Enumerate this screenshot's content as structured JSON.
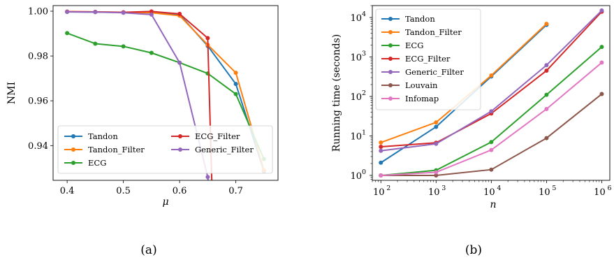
{
  "colors": {
    "Tandon": "#1f77b4",
    "Tandon_Filter": "#ff7f0e",
    "ECG": "#2ca02c",
    "ECG_Filter": "#d62728",
    "Generic_Filter": "#9467bd",
    "Louvain": "#8c564b",
    "Infomap": "#e377c2"
  },
  "chart_data": [
    {
      "type": "line",
      "caption": "(a)",
      "xlabel": "μ",
      "ylabel": "NMI",
      "xlim": [
        0.375,
        0.775
      ],
      "ylim": [
        0.9245,
        1.0025
      ],
      "xticks": [
        0.4,
        0.5,
        0.6,
        0.7
      ],
      "xtick_labels": [
        "0.4",
        "0.5",
        "0.6",
        "0.7"
      ],
      "yticks": [
        0.94,
        0.96,
        0.98,
        1.0
      ],
      "ytick_labels": [
        "0.94",
        "0.96",
        "0.98",
        "1.00"
      ],
      "legend": {
        "placement": "bottom",
        "columns": 2
      },
      "series": [
        {
          "name": "Tandon",
          "x": [
            0.4,
            0.45,
            0.5,
            0.55,
            0.6,
            0.65,
            0.7,
            0.75
          ],
          "y": [
            0.9997,
            0.9996,
            0.9994,
            0.9993,
            0.9985,
            0.9845,
            0.9675,
            0.9285
          ]
        },
        {
          "name": "Tandon_Filter",
          "x": [
            0.4,
            0.45,
            0.5,
            0.55,
            0.6,
            0.65,
            0.7,
            0.75
          ],
          "y": [
            0.9998,
            0.9997,
            0.9995,
            0.9993,
            0.998,
            0.985,
            0.9725,
            0.929
          ]
        },
        {
          "name": "ECG",
          "x": [
            0.4,
            0.45,
            0.5,
            0.55,
            0.6,
            0.65,
            0.7,
            0.75
          ],
          "y": [
            0.9902,
            0.9855,
            0.9843,
            0.9814,
            0.977,
            0.9722,
            0.963,
            0.934
          ]
        },
        {
          "name": "ECG_Filter",
          "x": [
            0.4,
            0.45,
            0.5,
            0.55,
            0.6,
            0.65,
            0.66
          ],
          "y": [
            0.9998,
            0.9997,
            0.9995,
            0.9999,
            0.9988,
            0.988,
            0.9
          ]
        },
        {
          "name": "Generic_Filter",
          "x": [
            0.4,
            0.45,
            0.5,
            0.55,
            0.6,
            0.65,
            0.66
          ],
          "y": [
            0.9997,
            0.9996,
            0.9993,
            0.9985,
            0.977,
            0.926,
            0.9
          ]
        }
      ],
      "legend_order": [
        "Tandon",
        "Tandon_Filter",
        "ECG",
        "ECG_Filter",
        "Generic_Filter"
      ]
    },
    {
      "type": "line",
      "caption": "(b)",
      "xlabel": "n",
      "ylabel": "Running time (seconds)",
      "xscale": "log",
      "yscale": "log",
      "xlim": [
        70,
        1400000
      ],
      "ylim": [
        0.75,
        20000
      ],
      "xticks": [
        100,
        1000,
        10000,
        100000,
        1000000
      ],
      "xtick_labels": [
        [
          "10",
          "2"
        ],
        [
          "10",
          "3"
        ],
        [
          "10",
          "4"
        ],
        [
          "10",
          "5"
        ],
        [
          "10",
          "6"
        ]
      ],
      "yticks": [
        1,
        10,
        100,
        1000,
        10000
      ],
      "ytick_labels": [
        [
          "10",
          "0"
        ],
        [
          "10",
          "1"
        ],
        [
          "10",
          "2"
        ],
        [
          "10",
          "3"
        ],
        [
          "10",
          "4"
        ]
      ],
      "legend": {
        "placement": "top-left",
        "columns": 1
      },
      "series": [
        {
          "name": "Tandon",
          "x": [
            100,
            1000,
            10000,
            100000
          ],
          "y": [
            2.1,
            17,
            320,
            6500
          ]
        },
        {
          "name": "Tandon_Filter",
          "x": [
            100,
            1000,
            10000,
            100000
          ],
          "y": [
            6.8,
            22,
            340,
            6900
          ]
        },
        {
          "name": "ECG",
          "x": [
            100,
            1000,
            10000,
            100000,
            1000000
          ],
          "y": [
            1.0,
            1.35,
            7.0,
            110,
            1800
          ]
        },
        {
          "name": "ECG_Filter",
          "x": [
            100,
            1000,
            10000,
            100000,
            1000000
          ],
          "y": [
            5.3,
            6.7,
            37,
            450,
            14000
          ]
        },
        {
          "name": "Generic_Filter",
          "x": [
            100,
            1000,
            10000,
            100000,
            1000000
          ],
          "y": [
            4.2,
            6.3,
            42,
            620,
            15000
          ]
        },
        {
          "name": "Louvain",
          "x": [
            100,
            1000,
            10000,
            100000,
            1000000
          ],
          "y": [
            1.0,
            1.0,
            1.4,
            8.8,
            115
          ]
        },
        {
          "name": "Infomap",
          "x": [
            100,
            1000,
            10000,
            100000,
            1000000
          ],
          "y": [
            1.0,
            1.2,
            4.4,
            48,
            720
          ]
        }
      ],
      "legend_order": [
        "Tandon",
        "Tandon_Filter",
        "ECG",
        "ECG_Filter",
        "Generic_Filter",
        "Louvain",
        "Infomap"
      ]
    }
  ]
}
